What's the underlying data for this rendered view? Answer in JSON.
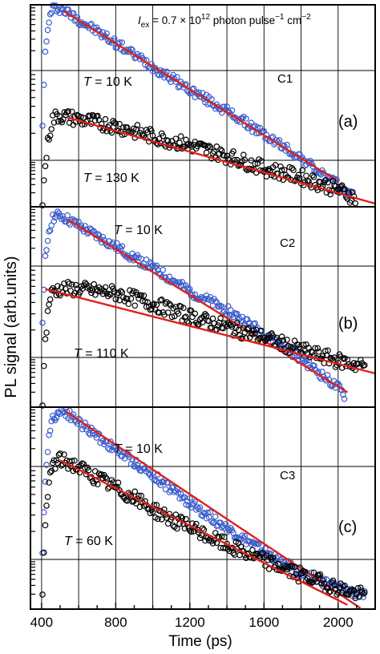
{
  "chart_data": {
    "type": "scatter",
    "xlabel": "Time (ps)",
    "ylabel": "PL signal (arb.units)",
    "xlim": [
      340,
      2200
    ],
    "xticks": [
      400,
      800,
      1200,
      1600,
      2000
    ],
    "y_scale": "log",
    "grid": true,
    "annotation": {
      "prefix": "I",
      "subscript": "ex",
      "text": " = 0.7 × 10",
      "sup": "12",
      "text2": " photon pulse",
      "sup2": "−1",
      "text3": " cm",
      "sup3": "−2"
    },
    "panels": [
      {
        "label": "(a)",
        "sample": "C1",
        "ylim": [
          0,
          9.5
        ],
        "series": [
          {
            "name": "T = 10 K",
            "t_label": "T",
            "t_value": " = 10 K",
            "color": "#3a5ccc",
            "points": [
              [
                405,
                4.0
              ],
              [
                420,
                7.2
              ],
              [
                440,
                8.8
              ],
              [
                460,
                9.3
              ],
              [
                490,
                9.35
              ],
              [
                530,
                9.2
              ],
              [
                600,
                8.8
              ],
              [
                800,
                7.7
              ],
              [
                1000,
                6.6
              ],
              [
                1200,
                5.5
              ],
              [
                1400,
                4.5
              ],
              [
                1600,
                3.4
              ],
              [
                1800,
                2.3
              ],
              [
                1900,
                1.6
              ],
              [
                2000,
                1.0
              ],
              [
                2080,
                0.5
              ]
            ],
            "fit": [
              [
                520,
                9.2
              ],
              [
                2000,
                1.2
              ]
            ]
          },
          {
            "name": "T = 130 K",
            "t_label": "T",
            "t_value": " = 130 K",
            "color": "#000000",
            "points": [
              [
                405,
                0.2
              ],
              [
                420,
                2.0
              ],
              [
                440,
                3.4
              ],
              [
                460,
                4.1
              ],
              [
                490,
                4.3
              ],
              [
                550,
                4.2
              ],
              [
                800,
                3.8
              ],
              [
                1000,
                3.3
              ],
              [
                1200,
                2.9
              ],
              [
                1400,
                2.4
              ],
              [
                1600,
                1.8
              ],
              [
                1800,
                1.4
              ],
              [
                2000,
                0.8
              ],
              [
                2100,
                0.4
              ]
            ],
            "fit": [
              [
                540,
                4.2
              ],
              [
                2200,
                0.15
              ]
            ]
          }
        ]
      },
      {
        "label": "(b)",
        "sample": "C2",
        "ylim": [
          0,
          9.5
        ],
        "series": [
          {
            "name": "T = 10 K",
            "t_label": "T",
            "t_value": " = 10 K",
            "color": "#3a5ccc",
            "points": [
              [
                405,
                3.8
              ],
              [
                420,
                7.0
              ],
              [
                440,
                8.4
              ],
              [
                460,
                9.0
              ],
              [
                500,
                9.1
              ],
              [
                540,
                8.9
              ],
              [
                600,
                8.6
              ],
              [
                800,
                7.6
              ],
              [
                1000,
                6.6
              ],
              [
                1200,
                5.5
              ],
              [
                1400,
                4.6
              ],
              [
                1600,
                3.5
              ],
              [
                1800,
                2.3
              ],
              [
                1900,
                1.6
              ],
              [
                2000,
                0.9
              ],
              [
                2040,
                0.5
              ]
            ],
            "fit": [
              [
                540,
                8.9
              ],
              [
                2050,
                0.7
              ]
            ]
          },
          {
            "name": "T = 110 K",
            "t_label": "T",
            "t_value": " = 110 K",
            "color": "#000000",
            "points": [
              [
                405,
                0.3
              ],
              [
                420,
                3.2
              ],
              [
                440,
                5.0
              ],
              [
                460,
                5.5
              ],
              [
                500,
                5.6
              ],
              [
                600,
                5.6
              ],
              [
                800,
                5.4
              ],
              [
                1000,
                4.9
              ],
              [
                1200,
                4.3
              ],
              [
                1400,
                3.8
              ],
              [
                1600,
                3.3
              ],
              [
                1800,
                2.7
              ],
              [
                2000,
                2.2
              ],
              [
                2150,
                1.9
              ]
            ],
            "fit": [
              [
                420,
                5.6
              ],
              [
                2200,
                1.6
              ]
            ]
          }
        ]
      },
      {
        "label": "(c)",
        "sample": "C3",
        "ylim": [
          0,
          9.5
        ],
        "series": [
          {
            "name": "T = 10 K",
            "t_label": "T",
            "t_value": " = 10 K",
            "color": "#3a5ccc",
            "points": [
              [
                405,
                2.5
              ],
              [
                420,
                6.2
              ],
              [
                440,
                8.2
              ],
              [
                460,
                9.0
              ],
              [
                500,
                9.3
              ],
              [
                530,
                9.3
              ],
              [
                600,
                8.8
              ],
              [
                800,
                7.5
              ],
              [
                1000,
                6.3
              ],
              [
                1200,
                5.0
              ],
              [
                1400,
                3.8
              ],
              [
                1600,
                2.7
              ],
              [
                1800,
                1.7
              ],
              [
                2000,
                1.0
              ],
              [
                2150,
                0.6
              ]
            ],
            "fit": [
              [
                530,
                9.3
              ],
              [
                2120,
                0.05
              ]
            ]
          },
          {
            "name": "T = 60 K",
            "t_label": "T",
            "t_value": " = 60 K",
            "color": "#000000",
            "points": [
              [
                405,
                1.0
              ],
              [
                420,
                3.8
              ],
              [
                440,
                6.0
              ],
              [
                460,
                6.8
              ],
              [
                500,
                7.0
              ],
              [
                550,
                6.9
              ],
              [
                800,
                5.7
              ],
              [
                1000,
                4.7
              ],
              [
                1200,
                3.8
              ],
              [
                1400,
                3.0
              ],
              [
                1600,
                2.3
              ],
              [
                1800,
                1.6
              ],
              [
                2000,
                1.0
              ],
              [
                2150,
                0.6
              ]
            ],
            "fit": [
              [
                500,
                7.0
              ],
              [
                2050,
                0.2
              ]
            ]
          }
        ]
      }
    ]
  }
}
